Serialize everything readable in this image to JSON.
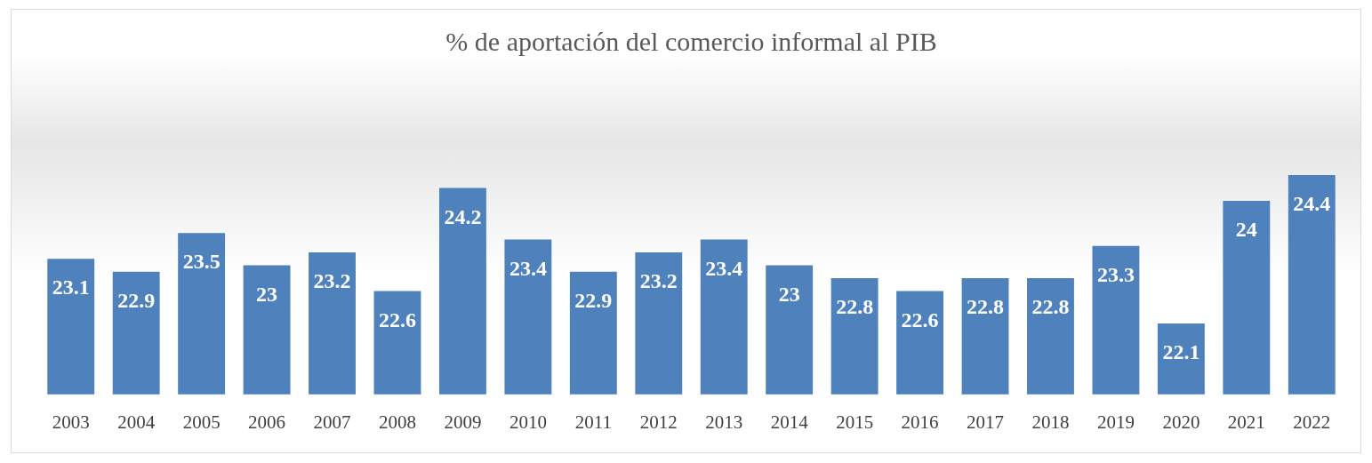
{
  "chart_data": {
    "type": "bar",
    "title": "% de aportación del comercio informal al PIB",
    "categories": [
      "2003",
      "2004",
      "2005",
      "2006",
      "2007",
      "2008",
      "2009",
      "2010",
      "2011",
      "2012",
      "2013",
      "2014",
      "2015",
      "2016",
      "2017",
      "2018",
      "2019",
      "2020",
      "2021",
      "2022"
    ],
    "values": [
      23.1,
      22.9,
      23.5,
      23,
      23.2,
      22.6,
      24.2,
      23.4,
      22.9,
      23.2,
      23.4,
      23,
      22.8,
      22.6,
      22.8,
      22.8,
      23.3,
      22.1,
      24,
      24.4
    ],
    "color": "#4f81bd",
    "data_labels": true,
    "grid": false,
    "legend": false,
    "tick_labels": "x"
  }
}
